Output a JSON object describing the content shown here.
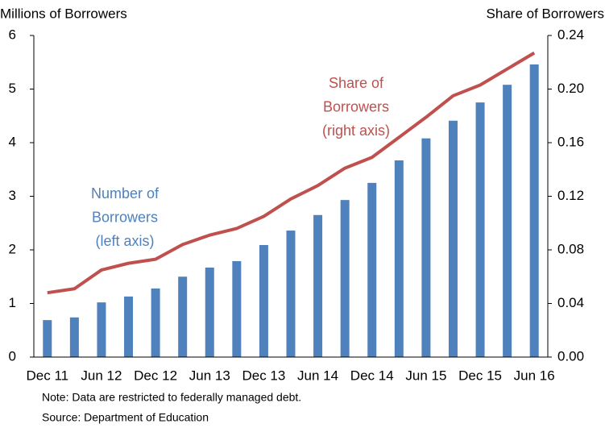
{
  "chart_data": {
    "type": "bar_line",
    "y_label": "Millions of Borrowers",
    "y2_label": "Share of Borrowers",
    "categories": [
      "Dec 11",
      null,
      "Jun 12",
      null,
      "Dec 12",
      null,
      "Jun 13",
      null,
      "Dec 13",
      null,
      "Jun 14",
      null,
      "Dec 14",
      null,
      "Jun 15",
      null,
      "Dec 15",
      null,
      "Jun 16"
    ],
    "series": [
      {
        "name": "Number of Borrowers",
        "type": "bar",
        "color": "#4f81bd",
        "axis": "y",
        "values": [
          0.69,
          0.74,
          1.02,
          1.13,
          1.28,
          1.5,
          1.67,
          1.79,
          2.09,
          2.36,
          2.65,
          2.93,
          3.25,
          3.67,
          4.08,
          4.41,
          4.75,
          5.08,
          5.46
        ]
      },
      {
        "name": "Share of Borrowers",
        "type": "line",
        "color": "#c0504d",
        "axis": "y2",
        "values": [
          0.048,
          0.051,
          0.065,
          0.07,
          0.073,
          0.084,
          0.091,
          0.096,
          0.105,
          0.118,
          0.128,
          0.141,
          0.149,
          0.164,
          0.179,
          0.195,
          0.203,
          0.215,
          0.227
        ]
      }
    ],
    "ylim": [
      0,
      6
    ],
    "yticks": [
      0,
      1,
      2,
      3,
      4,
      5,
      6
    ],
    "y2lim": [
      0,
      0.24
    ],
    "y2ticks": [
      {
        "value": 0,
        "label": "0.00"
      },
      {
        "value": 0.04,
        "label": "0.04"
      },
      {
        "value": 0.08,
        "label": "0.08"
      },
      {
        "value": 0.12,
        "label": "0.12"
      },
      {
        "value": 0.16,
        "label": "0.16"
      },
      {
        "value": 0.2,
        "label": "0.20"
      },
      {
        "value": 0.24,
        "label": "0.24"
      }
    ],
    "annotations": [
      {
        "lines": [
          "Share of",
          "Borrowers",
          "(right axis)"
        ],
        "color": "#c0504d"
      },
      {
        "lines": [
          "Number of",
          "Borrowers",
          "(left axis)"
        ],
        "color": "#4f81bd"
      }
    ],
    "notes": [
      "Note: Data are restricted to federally managed debt.",
      "Source: Department of Education"
    ]
  }
}
